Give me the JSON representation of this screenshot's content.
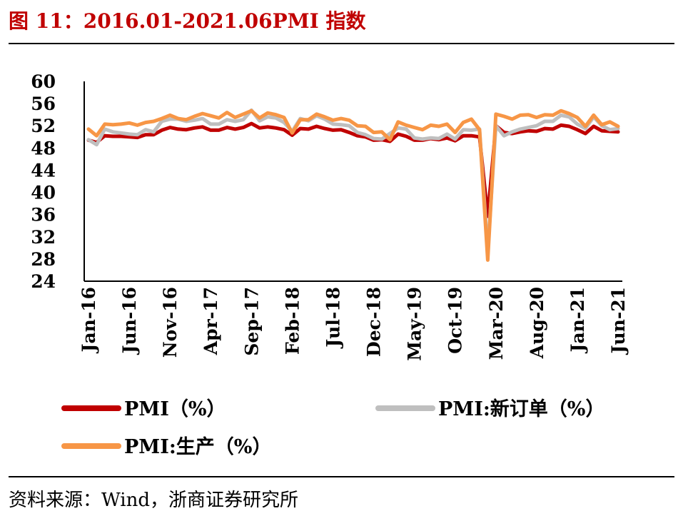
{
  "title": "图 11：2016.01-2021.06PMI 指数",
  "source": "资料来源：Wind，浙商证券研究所",
  "chart_data": {
    "type": "line",
    "ylim": [
      24,
      60
    ],
    "yticks": [
      24,
      28,
      32,
      36,
      40,
      44,
      48,
      52,
      56,
      60
    ],
    "xtick_labels": [
      "Jan-16",
      "Jun-16",
      "Nov-16",
      "Apr-17",
      "Sep-17",
      "Feb-18",
      "Jul-18",
      "Dec-18",
      "May-19",
      "Oct-19",
      "Mar-20",
      "Aug-20",
      "Jan-21",
      "Jun-21"
    ],
    "xtick_indices": [
      0,
      5,
      10,
      15,
      20,
      25,
      30,
      35,
      40,
      45,
      50,
      55,
      60,
      65
    ],
    "x": [
      "2016-01",
      "2016-02",
      "2016-03",
      "2016-04",
      "2016-05",
      "2016-06",
      "2016-07",
      "2016-08",
      "2016-09",
      "2016-10",
      "2016-11",
      "2016-12",
      "2017-01",
      "2017-02",
      "2017-03",
      "2017-04",
      "2017-05",
      "2017-06",
      "2017-07",
      "2017-08",
      "2017-09",
      "2017-10",
      "2017-11",
      "2017-12",
      "2018-01",
      "2018-02",
      "2018-03",
      "2018-04",
      "2018-05",
      "2018-06",
      "2018-07",
      "2018-08",
      "2018-09",
      "2018-10",
      "2018-11",
      "2018-12",
      "2019-01",
      "2019-02",
      "2019-03",
      "2019-04",
      "2019-05",
      "2019-06",
      "2019-07",
      "2019-08",
      "2019-09",
      "2019-10",
      "2019-11",
      "2019-12",
      "2020-01",
      "2020-02",
      "2020-03",
      "2020-04",
      "2020-05",
      "2020-06",
      "2020-07",
      "2020-08",
      "2020-09",
      "2020-10",
      "2020-11",
      "2020-12",
      "2021-01",
      "2021-02",
      "2021-03",
      "2021-04",
      "2021-05",
      "2021-06"
    ],
    "series": [
      {
        "name": "PMI（%）",
        "color": "#c00000",
        "values": [
          49.4,
          49.0,
          50.2,
          50.1,
          50.1,
          50.0,
          49.9,
          50.4,
          50.4,
          51.2,
          51.7,
          51.4,
          51.3,
          51.6,
          51.8,
          51.2,
          51.2,
          51.7,
          51.4,
          51.7,
          52.4,
          51.6,
          51.8,
          51.6,
          51.3,
          50.3,
          51.5,
          51.4,
          51.9,
          51.5,
          51.2,
          51.3,
          50.8,
          50.2,
          50.0,
          49.4,
          49.5,
          49.2,
          50.5,
          50.1,
          49.4,
          49.4,
          49.7,
          49.5,
          49.8,
          49.3,
          50.2,
          50.2,
          50.0,
          35.7,
          52.0,
          50.8,
          50.6,
          50.9,
          51.1,
          51.0,
          51.5,
          51.4,
          52.1,
          51.9,
          51.3,
          50.6,
          51.9,
          51.1,
          51.0,
          50.9
        ]
      },
      {
        "name": "PMI:新订单（%）",
        "color": "#bfbfbf",
        "values": [
          49.5,
          48.6,
          51.4,
          50.9,
          50.7,
          50.5,
          50.4,
          51.3,
          50.9,
          52.8,
          53.2,
          53.2,
          52.8,
          53.0,
          53.3,
          52.3,
          52.3,
          53.1,
          52.8,
          53.1,
          54.8,
          52.9,
          53.6,
          53.4,
          52.6,
          51.0,
          53.3,
          52.9,
          53.8,
          53.2,
          52.3,
          52.2,
          52.0,
          50.8,
          50.4,
          49.7,
          49.6,
          50.6,
          51.6,
          51.4,
          49.8,
          49.6,
          49.8,
          49.7,
          50.5,
          49.6,
          51.3,
          51.2,
          51.4,
          29.3,
          52.0,
          50.2,
          50.9,
          51.4,
          51.7,
          52.0,
          52.8,
          52.8,
          53.9,
          53.6,
          52.3,
          51.5,
          53.6,
          52.0,
          51.3,
          51.5
        ]
      },
      {
        "name": "PMI:生产（%）",
        "color": "#f79646",
        "values": [
          51.4,
          50.2,
          52.3,
          52.2,
          52.3,
          52.5,
          52.1,
          52.6,
          52.8,
          53.3,
          53.9,
          53.3,
          53.1,
          53.7,
          54.2,
          53.8,
          53.4,
          54.4,
          53.5,
          54.1,
          54.7,
          53.4,
          54.3,
          54.0,
          53.5,
          50.7,
          53.1,
          53.1,
          54.1,
          53.6,
          53.0,
          53.3,
          53.0,
          52.0,
          51.9,
          50.8,
          50.9,
          49.5,
          52.7,
          52.1,
          51.7,
          51.3,
          52.1,
          51.9,
          52.3,
          50.8,
          52.6,
          53.2,
          51.3,
          27.8,
          54.1,
          53.7,
          53.2,
          53.9,
          54.0,
          53.5,
          54.0,
          53.9,
          54.7,
          54.2,
          53.5,
          51.9,
          53.9,
          52.2,
          52.7,
          51.9
        ]
      }
    ],
    "legend_position": "bottom"
  }
}
